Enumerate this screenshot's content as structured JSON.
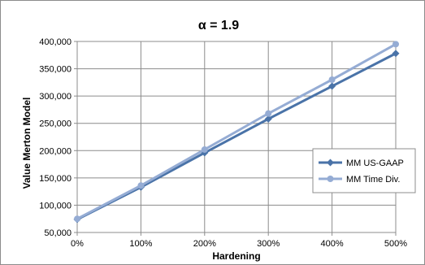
{
  "chart_data": {
    "type": "line",
    "title": "α = 1.9",
    "xlabel": "Hardening",
    "ylabel": "Value Merton Model",
    "categories": [
      "0%",
      "100%",
      "200%",
      "300%",
      "400%",
      "500%"
    ],
    "ylim": [
      50000,
      400000
    ],
    "yticks": [
      50000,
      100000,
      150000,
      200000,
      250000,
      300000,
      350000,
      400000
    ],
    "ytick_labels": [
      "50,000",
      "100,000",
      "150,000",
      "200,000",
      "250,000",
      "300,000",
      "350,000",
      "400,000"
    ],
    "grid": true,
    "legend_position": "right",
    "series": [
      {
        "name": "MM US-GAAP",
        "color": "#4a73a8",
        "marker": "diamond",
        "values": [
          74000,
          133000,
          196000,
          258000,
          318000,
          378000
        ]
      },
      {
        "name": "MM Time Div.",
        "color": "#95acd4",
        "marker": "circle",
        "values": [
          75000,
          136000,
          202000,
          268000,
          330000,
          395000
        ]
      }
    ]
  }
}
